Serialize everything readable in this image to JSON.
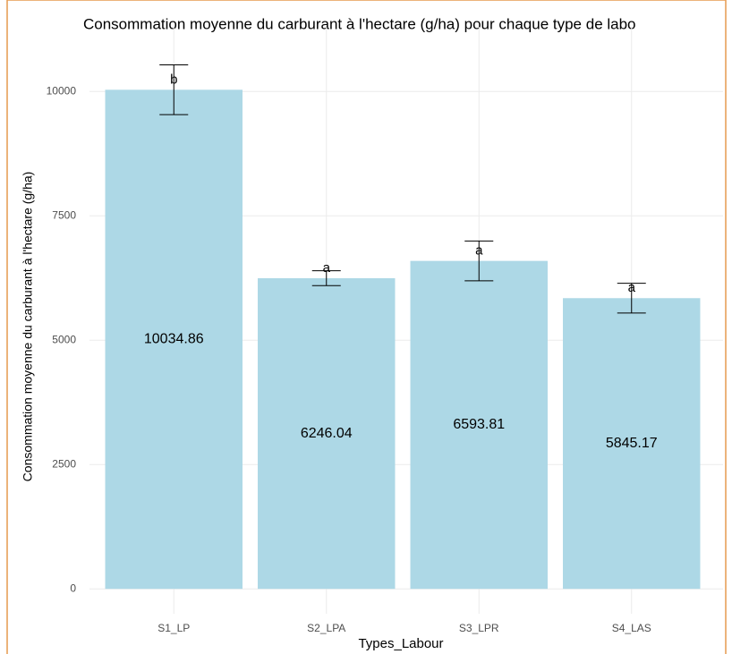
{
  "chart_data": {
    "type": "bar",
    "title": "Consommation moyenne du carburant à l'hectare (g/ha) pour chaque type de labo",
    "x_label": "Types_Labour",
    "y_label": "Consommation moyenne du carburant à l'hectare (g/ha)",
    "categories": [
      "S1_LP",
      "S2_LPA",
      "S3_LPR",
      "S4_LAS"
    ],
    "values": [
      10034.86,
      6246.04,
      6593.81,
      5845.17
    ],
    "errors": [
      500,
      150,
      400,
      300
    ],
    "letters": [
      "b",
      "a",
      "a",
      "a"
    ],
    "color": "#add8e6",
    "ylim": [
      -500,
      11300
    ],
    "yticks": [
      0,
      2500,
      5000,
      7500,
      10000
    ],
    "grid": true
  }
}
